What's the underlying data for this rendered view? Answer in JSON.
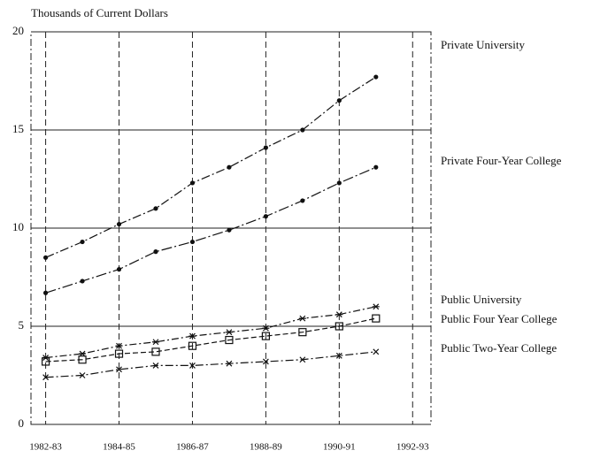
{
  "chart_data": {
    "type": "line",
    "title": "Thousands of Current Dollars",
    "x": [
      1982,
      1983,
      1984,
      1985,
      1986,
      1987,
      1988,
      1989,
      1990,
      1991
    ],
    "xlim": [
      1981.6,
      1992.5
    ],
    "xticks": [
      {
        "value": 1982,
        "label": "1982-83"
      },
      {
        "value": 1984,
        "label": "1984-85"
      },
      {
        "value": 1986,
        "label": "1986-87"
      },
      {
        "value": 1988,
        "label": "1988-89"
      },
      {
        "value": 1990,
        "label": "1990-91"
      },
      {
        "value": 1992,
        "label": "1992-93"
      }
    ],
    "ylim": [
      0,
      20
    ],
    "yticks": [
      0,
      5,
      10,
      15,
      20
    ],
    "grid": true,
    "series": [
      {
        "name": "Private University",
        "color": "#111",
        "marker": "dot",
        "values": [
          8.5,
          9.3,
          10.2,
          11.0,
          12.3,
          13.1,
          14.1,
          15.0,
          16.5,
          17.7
        ]
      },
      {
        "name": "Private Four-Year College",
        "color": "#111",
        "marker": "dot",
        "values": [
          6.7,
          7.3,
          7.9,
          8.8,
          9.3,
          9.9,
          10.6,
          11.4,
          12.3,
          13.1
        ]
      },
      {
        "name": "Public University",
        "color": "#111",
        "marker": "star",
        "values": [
          3.4,
          3.6,
          4.0,
          4.2,
          4.5,
          4.7,
          4.9,
          5.4,
          5.6,
          6.0
        ]
      },
      {
        "name": "Public Four Year College",
        "color": "#111",
        "marker": "square",
        "values": [
          3.2,
          3.3,
          3.6,
          3.7,
          4.0,
          4.3,
          4.5,
          4.7,
          5.0,
          5.4
        ]
      },
      {
        "name": "Public Two-Year College",
        "color": "#111",
        "marker": "x",
        "values": [
          2.4,
          2.5,
          2.8,
          3.0,
          3.0,
          3.1,
          3.2,
          3.3,
          3.5,
          3.7
        ]
      }
    ]
  }
}
